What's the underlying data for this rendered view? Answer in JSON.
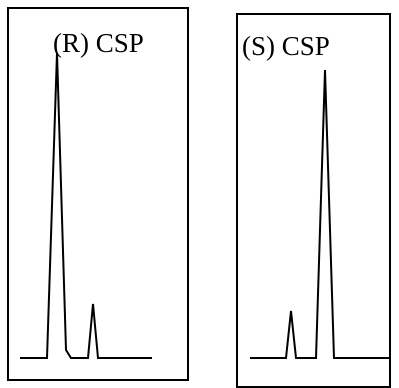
{
  "panels": [
    {
      "label": "(R) CSP",
      "peaks": [
        {
          "order": 1,
          "relative_height": 1.0
        },
        {
          "order": 2,
          "relative_height": 0.17
        }
      ]
    },
    {
      "label": "(S) CSP",
      "peaks": [
        {
          "order": 1,
          "relative_height": 0.16
        },
        {
          "order": 2,
          "relative_height": 0.97
        }
      ]
    }
  ],
  "colors": {
    "line": "#000000",
    "background": "#ffffff"
  }
}
